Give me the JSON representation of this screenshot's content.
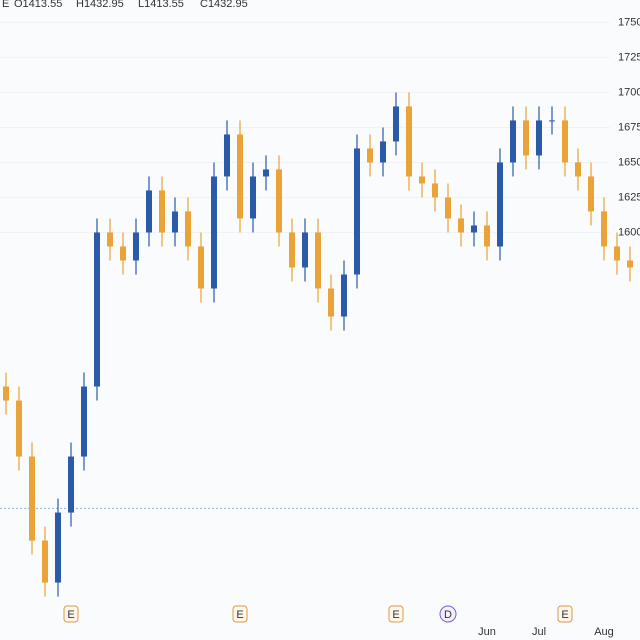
{
  "chart_data": {
    "type": "candlestick",
    "ohlc_header": [
      "E",
      "O1413.55",
      "H1432.95",
      "L1413.55",
      "C1432.95"
    ],
    "open": [
      1490,
      1480,
      1440,
      1380,
      1350,
      1400,
      1440,
      1490,
      1600,
      1590,
      1580,
      1600,
      1630,
      1600,
      1615,
      1590,
      1560,
      1640,
      1670,
      1610,
      1640,
      1645,
      1600,
      1575,
      1600,
      1560,
      1540,
      1570,
      1660,
      1650,
      1665,
      1690,
      1640,
      1635,
      1625,
      1610,
      1600,
      1605,
      1590,
      1650,
      1680,
      1655,
      1680,
      1680,
      1650,
      1640,
      1615,
      1590,
      1580
    ],
    "high": [
      1500,
      1490,
      1450,
      1390,
      1410,
      1450,
      1500,
      1610,
      1610,
      1600,
      1610,
      1640,
      1640,
      1625,
      1625,
      1600,
      1650,
      1680,
      1680,
      1650,
      1655,
      1655,
      1610,
      1610,
      1610,
      1570,
      1580,
      1670,
      1670,
      1675,
      1700,
      1700,
      1650,
      1645,
      1635,
      1620,
      1615,
      1615,
      1660,
      1690,
      1690,
      1690,
      1690,
      1690,
      1660,
      1650,
      1625,
      1600,
      1590
    ],
    "low": [
      1470,
      1430,
      1370,
      1340,
      1340,
      1390,
      1430,
      1480,
      1580,
      1570,
      1570,
      1590,
      1590,
      1590,
      1580,
      1550,
      1550,
      1630,
      1600,
      1600,
      1630,
      1590,
      1565,
      1565,
      1550,
      1530,
      1530,
      1560,
      1640,
      1640,
      1655,
      1630,
      1625,
      1615,
      1600,
      1590,
      1590,
      1580,
      1580,
      1640,
      1645,
      1645,
      1670,
      1640,
      1630,
      1605,
      1580,
      1570,
      1565
    ],
    "close": [
      1480,
      1440,
      1380,
      1350,
      1400,
      1440,
      1490,
      1600,
      1590,
      1580,
      1600,
      1630,
      1600,
      1615,
      1590,
      1560,
      1640,
      1670,
      1610,
      1640,
      1645,
      1600,
      1575,
      1600,
      1560,
      1540,
      1570,
      1660,
      1650,
      1665,
      1690,
      1640,
      1635,
      1625,
      1610,
      1600,
      1605,
      1590,
      1650,
      1680,
      1655,
      1680,
      1680,
      1650,
      1640,
      1615,
      1590,
      1580,
      1575
    ],
    "up_color": "#2b5ba8",
    "down_color": "#e9a336",
    "ylim": [
      1309,
      1766
    ],
    "yticks": [
      {
        "value": 1750,
        "label": "1750.0"
      },
      {
        "value": 1725,
        "label": "1725.0"
      },
      {
        "value": 1700,
        "label": "1700.0"
      },
      1675,
      1650,
      1625,
      1600
    ],
    "xticks": [
      {
        "value": 37,
        "label": "Jun"
      },
      {
        "value": 41,
        "label": "Jul"
      },
      {
        "value": 46,
        "label": "Aug"
      }
    ],
    "price_line": 1403,
    "events": [
      {
        "label": "E",
        "index": 5
      },
      {
        "label": "E",
        "index": 18
      },
      {
        "label": "E",
        "index": 30
      },
      {
        "label": "D",
        "index": 34
      },
      {
        "label": "E",
        "index": 43
      }
    ]
  }
}
